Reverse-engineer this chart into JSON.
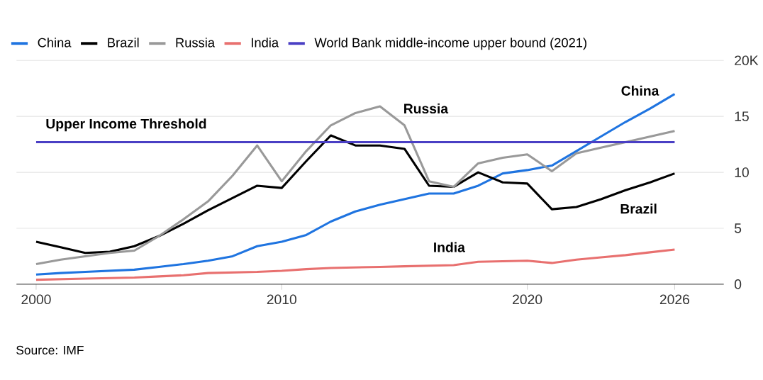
{
  "chart_data": {
    "type": "line",
    "x": [
      2000,
      2001,
      2002,
      2003,
      2004,
      2005,
      2006,
      2007,
      2008,
      2009,
      2010,
      2011,
      2012,
      2013,
      2014,
      2015,
      2016,
      2017,
      2018,
      2019,
      2020,
      2021,
      2022,
      2023,
      2024,
      2025,
      2026
    ],
    "series": [
      {
        "name": "China",
        "color": "#1f74e0",
        "values": [
          0.86,
          1.0,
          1.1,
          1.2,
          1.3,
          1.55,
          1.8,
          2.1,
          2.5,
          3.4,
          3.8,
          4.4,
          5.6,
          6.5,
          7.1,
          7.6,
          8.1,
          8.1,
          8.8,
          9.9,
          10.2,
          10.6,
          11.9,
          13.2,
          14.5,
          15.7,
          17.0
        ]
      },
      {
        "name": "Brazil",
        "color": "#000000",
        "values": [
          3.8,
          3.3,
          2.8,
          2.9,
          3.4,
          4.3,
          5.4,
          6.6,
          7.7,
          8.8,
          8.6,
          11.0,
          13.3,
          12.4,
          12.4,
          12.1,
          8.8,
          8.7,
          10.0,
          9.1,
          9.0,
          6.7,
          6.9,
          7.6,
          8.4,
          9.1,
          9.9
        ]
      },
      {
        "name": "Russia",
        "color": "#999999",
        "values": [
          1.8,
          2.2,
          2.5,
          2.8,
          3.0,
          4.3,
          5.8,
          7.4,
          9.7,
          12.4,
          9.2,
          11.9,
          14.2,
          15.3,
          15.9,
          14.2,
          9.2,
          8.7,
          10.8,
          11.3,
          11.6,
          10.1,
          11.7,
          12.2,
          12.7,
          13.2,
          13.7
        ]
      },
      {
        "name": "India",
        "color": "#e8706f",
        "values": [
          0.4,
          0.45,
          0.5,
          0.55,
          0.6,
          0.7,
          0.8,
          1.0,
          1.05,
          1.1,
          1.2,
          1.35,
          1.45,
          1.5,
          1.55,
          1.6,
          1.65,
          1.7,
          2.0,
          2.05,
          2.1,
          1.9,
          2.2,
          2.4,
          2.6,
          2.85,
          3.1
        ]
      },
      {
        "name": "World Bank middle-income upper bound (2021)",
        "color": "#4a3fc4",
        "x": [
          2000,
          2026
        ],
        "values": [
          12.7,
          12.7
        ]
      }
    ],
    "xlim": [
      1999.2,
      2028
    ],
    "ylim": [
      0,
      20
    ],
    "xticks": [
      2000,
      2010,
      2020,
      2026
    ],
    "yticks": [
      0,
      5,
      10,
      15,
      {
        "value": 20,
        "label": "20K"
      }
    ],
    "grid": "y",
    "legend": "top",
    "marker": "none",
    "line_style": "solid",
    "annotations": [
      "Upper Income Threshold",
      "Russia",
      "China",
      "Brazil",
      "India",
      "Source: IMF"
    ]
  }
}
